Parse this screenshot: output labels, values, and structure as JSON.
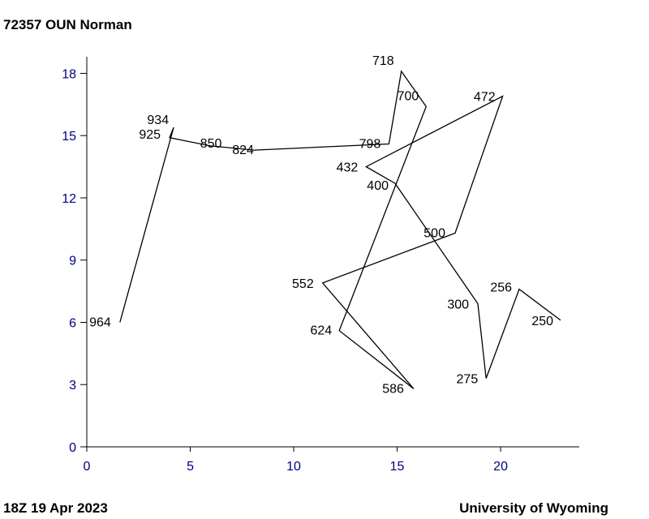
{
  "header": {
    "station": "72357 OUN Norman"
  },
  "footer": {
    "time": "18Z 19 Apr 2023",
    "source": "University of Wyoming"
  },
  "colors": {
    "axis_text": "#000080",
    "line": "#000000",
    "text": "#000000"
  },
  "chart_data": {
    "type": "line",
    "title": "72357 OUN Norman",
    "xlabel": "",
    "ylabel": "",
    "xlim": [
      0,
      23.8
    ],
    "ylim": [
      0,
      18.8
    ],
    "x_ticks": [
      0,
      5,
      10,
      15,
      20
    ],
    "y_ticks": [
      0,
      3,
      6,
      9,
      12,
      15,
      18
    ],
    "grid": false,
    "series": [
      {
        "points": [
          {
            "label": "964",
            "x": 1.6,
            "y": 6.0
          },
          {
            "label": "934",
            "x": 4.2,
            "y": 15.4
          },
          {
            "label": "925",
            "x": 4.0,
            "y": 14.9
          },
          {
            "label": "850",
            "x": 6.0,
            "y": 14.5
          },
          {
            "label": "824",
            "x": 8.1,
            "y": 14.3
          },
          {
            "label": "798",
            "x": 14.6,
            "y": 14.6
          },
          {
            "label": "718",
            "x": 15.2,
            "y": 18.1
          },
          {
            "label": "700",
            "x": 16.4,
            "y": 16.4
          },
          {
            "label": "624",
            "x": 12.2,
            "y": 5.6
          },
          {
            "label": "586",
            "x": 15.8,
            "y": 2.8
          },
          {
            "label": "552",
            "x": 11.4,
            "y": 7.9
          },
          {
            "label": "500",
            "x": 17.8,
            "y": 10.3
          },
          {
            "label": "472",
            "x": 20.1,
            "y": 16.9
          },
          {
            "label": "432",
            "x": 13.5,
            "y": 13.5
          },
          {
            "label": "400",
            "x": 14.9,
            "y": 12.7
          },
          {
            "label": "300",
            "x": 18.9,
            "y": 6.9
          },
          {
            "label": "275",
            "x": 19.3,
            "y": 3.3
          },
          {
            "label": "256",
            "x": 20.9,
            "y": 7.6
          },
          {
            "label": "250",
            "x": 22.9,
            "y": 6.1
          }
        ]
      }
    ]
  }
}
